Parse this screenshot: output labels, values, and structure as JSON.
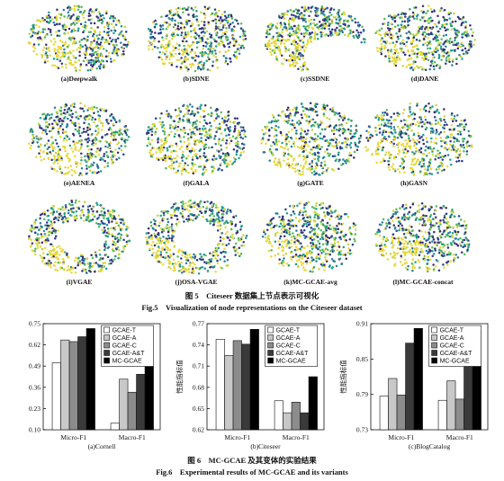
{
  "figure5": {
    "caption_cn": "图 5　Citeseer 数据集上节点表示可视化",
    "caption_en": "Fig.5　Visualization of node representations on the Citeseer dataset",
    "panels": [
      {
        "label": "(a)Deepwalk"
      },
      {
        "label": "(b)SDNE"
      },
      {
        "label": "(c)SSDNE"
      },
      {
        "label": "(d)DANE"
      },
      {
        "label": "(e)AENEA"
      },
      {
        "label": "(f)GALA"
      },
      {
        "label": "(g)GATE"
      },
      {
        "label": "(h)GASN"
      },
      {
        "label": "(i)VGAE"
      },
      {
        "label": "(j)OSA-VGAE"
      },
      {
        "label": "(k)MC-GCAE-avg"
      },
      {
        "label": "(l)MC-GCAE-concat"
      }
    ],
    "point_colors": [
      "#2a3a8c",
      "#2b7ba3",
      "#1fa088",
      "#58b85a",
      "#c6d43a",
      "#e8d83a",
      "#3b2a6e"
    ]
  },
  "figure6": {
    "caption_cn": "图 6　MC-GCAE 及其变体的实验结果",
    "caption_en": "Fig.6　Experimental results of MC-GCAE and its variants"
  },
  "chart_data": [
    {
      "type": "bar",
      "subtitle": "(a)Cornell",
      "ylabel": "",
      "categories": [
        "Micro-F1",
        "Macro-F1"
      ],
      "ylim": [
        0.1,
        0.75
      ],
      "yticks": [
        "0.10",
        "0.23",
        "0.36",
        "0.49",
        "0.62",
        "0.75"
      ],
      "series": [
        {
          "name": "GCAE-T",
          "color": "#ffffff",
          "values": [
            0.51,
            0.14
          ]
        },
        {
          "name": "GCAE-A",
          "color": "#c8c8c8",
          "values": [
            0.65,
            0.41
          ]
        },
        {
          "name": "GCAE-C",
          "color": "#8c8c8c",
          "values": [
            0.64,
            0.33
          ]
        },
        {
          "name": "GCAE-A&T",
          "color": "#3a3a3a",
          "values": [
            0.67,
            0.44
          ]
        },
        {
          "name": "MC-GCAE",
          "color": "#000000",
          "values": [
            0.72,
            0.49
          ]
        }
      ]
    },
    {
      "type": "bar",
      "subtitle": "(b)Citeseer",
      "ylabel": "性能指标值",
      "categories": [
        "Micro-F1",
        "Macro-F1"
      ],
      "ylim": [
        0.62,
        0.77
      ],
      "yticks": [
        "0.62",
        "0.65",
        "0.68",
        "0.71",
        "0.74",
        "0.77"
      ],
      "series": [
        {
          "name": "GCAE-T",
          "color": "#ffffff",
          "values": [
            0.748,
            0.661
          ]
        },
        {
          "name": "GCAE-A",
          "color": "#c8c8c8",
          "values": [
            0.725,
            0.644
          ]
        },
        {
          "name": "GCAE-C",
          "color": "#8c8c8c",
          "values": [
            0.746,
            0.659
          ]
        },
        {
          "name": "GCAE-A&T",
          "color": "#3a3a3a",
          "values": [
            0.741,
            0.644
          ]
        },
        {
          "name": "MC-GCAE",
          "color": "#000000",
          "values": [
            0.762,
            0.695
          ]
        }
      ]
    },
    {
      "type": "bar",
      "subtitle": "(c)BlogCatalog",
      "ylabel": "性能指标值",
      "categories": [
        "Micro-F1",
        "Macro-F1"
      ],
      "ylim": [
        0.73,
        0.91
      ],
      "yticks": [
        "0.73",
        "0.79",
        "0.85",
        "0.91"
      ],
      "series": [
        {
          "name": "GCAE-T",
          "color": "#ffffff",
          "values": [
            0.787,
            0.78
          ]
        },
        {
          "name": "GCAE-A",
          "color": "#c8c8c8",
          "values": [
            0.817,
            0.813
          ]
        },
        {
          "name": "GCAE-C",
          "color": "#8c8c8c",
          "values": [
            0.789,
            0.782
          ]
        },
        {
          "name": "GCAE-A&T",
          "color": "#3a3a3a",
          "values": [
            0.877,
            0.876
          ]
        },
        {
          "name": "MC-GCAE",
          "color": "#000000",
          "values": [
            0.902,
            0.898
          ]
        }
      ]
    }
  ]
}
